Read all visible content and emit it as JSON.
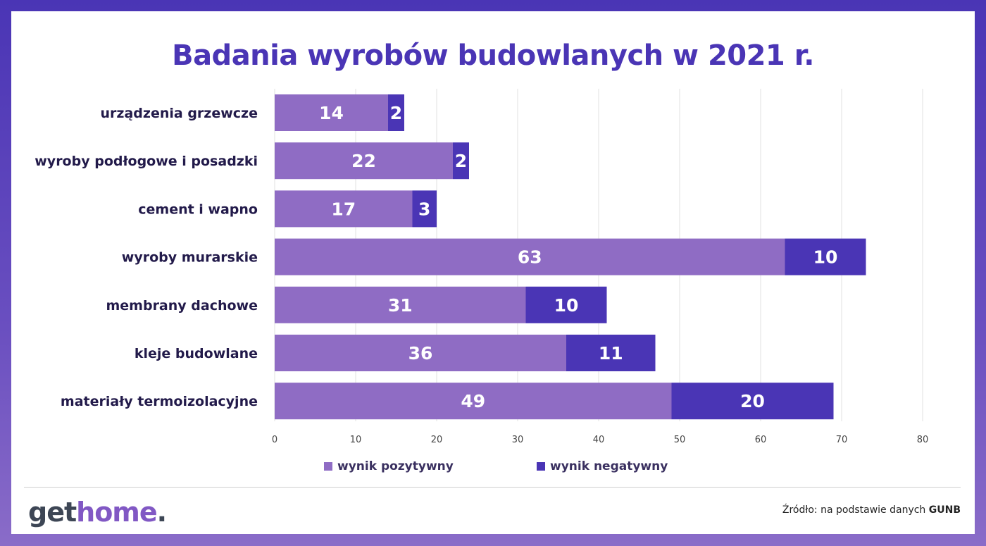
{
  "title": "Badania wyrobów budowlanych w 2021 r.",
  "chart_data": {
    "type": "bar",
    "orientation": "horizontal",
    "stacked": true,
    "categories": [
      "urządzenia grzewcze",
      "wyroby podłogowe i posadzki",
      "cement i wapno",
      "wyroby murarskie",
      "membrany dachowe",
      "kleje budowlane",
      "materiały termoizolacyjne"
    ],
    "series": [
      {
        "name": "wynik pozytywny",
        "color": "#8f6cc4",
        "values": [
          14,
          22,
          17,
          63,
          31,
          36,
          49
        ]
      },
      {
        "name": "wynik negatywny",
        "color": "#4a35b5",
        "values": [
          2,
          2,
          3,
          10,
          10,
          11,
          20
        ]
      }
    ],
    "xlim": [
      0,
      80
    ],
    "xticks": [
      0,
      10,
      20,
      30,
      40,
      50,
      60,
      70,
      80
    ],
    "grid": true,
    "legend_position": "bottom"
  },
  "footer": {
    "logo_part1": "get",
    "logo_part2": "home",
    "logo_part3": ".",
    "source_prefix": "Źródło: na podstawie danych ",
    "source_bold": "GUNB"
  }
}
